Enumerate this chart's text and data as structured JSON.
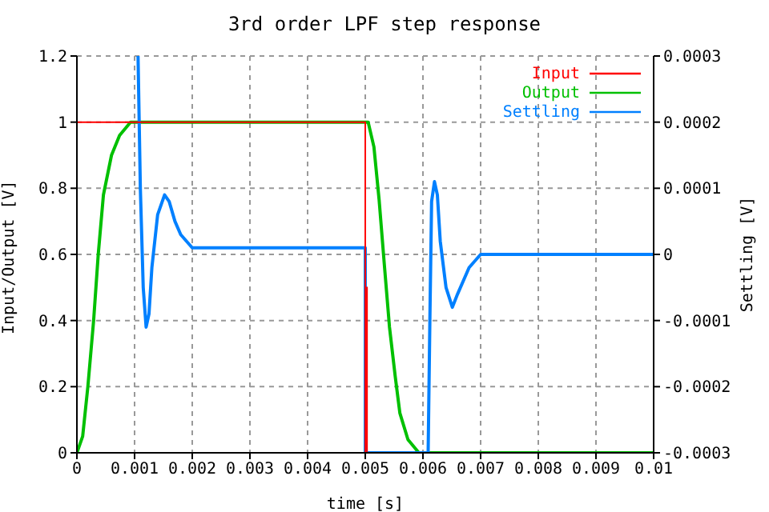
{
  "chart_data": {
    "type": "line",
    "title": "3rd order LPF step response",
    "xlabel": "time [s]",
    "ylabel": "Input/Output [V]",
    "y2label": "Settling [V]",
    "xlim": [
      0,
      0.01
    ],
    "xticks": [
      0,
      0.001,
      0.002,
      0.003,
      0.004,
      0.005,
      0.006,
      0.007,
      0.008,
      0.009,
      0.01
    ],
    "ylim": [
      0,
      1.2
    ],
    "yticks": [
      0,
      0.2,
      0.4,
      0.6,
      0.8,
      1,
      1.2
    ],
    "y2lim": [
      -0.0003,
      0.0003
    ],
    "y2ticks": [
      -0.0003,
      -0.0002,
      -0.0001,
      0,
      0.0001,
      0.0002,
      0.0003
    ],
    "grid": true,
    "legend": "top right",
    "line_style": "solid",
    "marker": "none",
    "series": [
      {
        "name": "Input",
        "color": "#ff0000",
        "x": [
          0,
          0.005,
          0.005,
          0.00503,
          0.00503,
          0.01
        ],
        "values": [
          1,
          1,
          0,
          0.5,
          0,
          0
        ]
      },
      {
        "name": "Output",
        "color": "#00c000",
        "x": [
          0,
          0.0001,
          0.00019,
          0.00029,
          0.00037,
          0.00046,
          0.0006,
          0.00074,
          0.00093,
          0.005,
          0.00505,
          0.00515,
          0.00524,
          0.00533,
          0.00542,
          0.00552,
          0.0056,
          0.00574,
          0.00593,
          0.01
        ],
        "values": [
          0,
          0.05,
          0.2,
          0.4,
          0.6,
          0.78,
          0.9,
          0.96,
          1,
          1,
          1,
          0.925,
          0.765,
          0.57,
          0.38,
          0.23,
          0.12,
          0.04,
          0,
          0
        ]
      },
      {
        "name": "Settling",
        "color": "#0080ff",
        "axis": "y2",
        "x": [
          0.00106,
          0.0011,
          0.00115,
          0.0012,
          0.00125,
          0.0013,
          0.0014,
          0.00152,
          0.0016,
          0.0017,
          0.0018,
          0.0019,
          0.002,
          0.00218,
          0.005,
          0.005,
          0.00609,
          0.00612,
          0.00615,
          0.0062,
          0.00625,
          0.0063,
          0.0064,
          0.00651,
          0.0066,
          0.0068,
          0.007,
          0.00718,
          0.01
        ],
        "values": [
          0.0003,
          0.0001,
          -5e-05,
          -0.00011,
          -9e-05,
          -2e-05,
          6e-05,
          9e-05,
          8e-05,
          5e-05,
          3e-05,
          2e-05,
          1e-05,
          1e-05,
          1e-05,
          -0.0003,
          -0.0003,
          -0.0001,
          8e-05,
          0.00011,
          9e-05,
          2e-05,
          -5e-05,
          -8e-05,
          -6e-05,
          -2e-05,
          0,
          0,
          0
        ]
      }
    ]
  }
}
